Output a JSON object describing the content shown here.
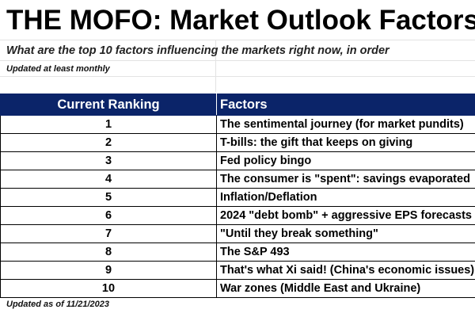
{
  "header": {
    "title": "THE MOFO: Market Outlook Factors",
    "subtitle": "What are the top 10 factors influencing the markets right now, in order",
    "update_frequency": "Updated at least monthly"
  },
  "table": {
    "columns": [
      "Current Ranking",
      "Factors"
    ],
    "rows": [
      {
        "rank": "1",
        "factor": "The sentimental journey (for market pundits)"
      },
      {
        "rank": "2",
        "factor": "T-bills: the gift that keeps on giving"
      },
      {
        "rank": "3",
        "factor": "Fed policy bingo"
      },
      {
        "rank": "4",
        "factor": "The consumer is \"spent\": savings evaporated"
      },
      {
        "rank": "5",
        "factor": "Inflation/Deflation"
      },
      {
        "rank": "6",
        "factor": "2024 \"debt bomb\" + aggressive EPS forecasts"
      },
      {
        "rank": "7",
        "factor": "\"Until they break something\""
      },
      {
        "rank": "8",
        "factor": "The S&P 493"
      },
      {
        "rank": "9",
        "factor": "That's what Xi said! (China's economic issues)"
      },
      {
        "rank": "10",
        "factor": "War zones (Middle East and Ukraine)"
      }
    ]
  },
  "footer": {
    "updated_as_of": "Updated as of 11/21/2023"
  },
  "colors": {
    "header_background": "#0b2469",
    "header_text": "#ffffff",
    "body_text": "#000000"
  }
}
